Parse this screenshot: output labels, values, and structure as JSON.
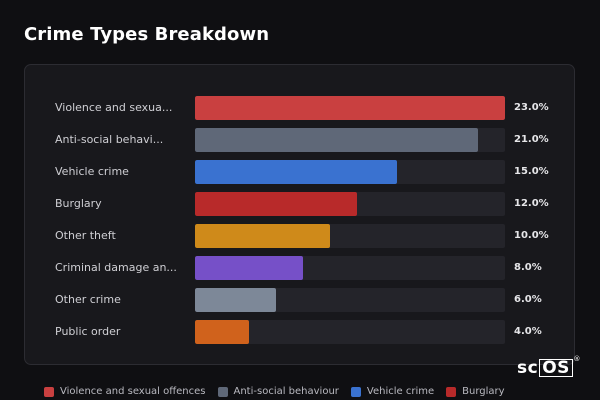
{
  "title": "Crime Types Breakdown",
  "brand": "scOS",
  "chart_data": {
    "type": "bar",
    "orientation": "horizontal",
    "categories": [
      "Violence and sexua...",
      "Anti-social behavi...",
      "Vehicle crime",
      "Burglary",
      "Other theft",
      "Criminal damage an...",
      "Other crime",
      "Public order"
    ],
    "values": [
      23.0,
      21.0,
      15.0,
      12.0,
      10.0,
      8.0,
      6.0,
      4.0
    ],
    "value_labels": [
      "23.0%",
      "21.0%",
      "15.0%",
      "12.0%",
      "10.0%",
      "8.0%",
      "6.0%",
      "4.0%"
    ],
    "colors": [
      "#c94040",
      "#5f6878",
      "#3a72d0",
      "#b82a2a",
      "#cf8a1a",
      "#7650c8",
      "#7d8898",
      "#d0621c"
    ],
    "xlim": [
      0,
      23.0
    ],
    "grid": false,
    "legend": {
      "placement": "bottom",
      "entries": [
        {
          "label": "Violence and sexual offences",
          "color": "#c94040"
        },
        {
          "label": "Anti-social behaviour",
          "color": "#5f6878"
        },
        {
          "label": "Vehicle crime",
          "color": "#3a72d0"
        },
        {
          "label": "Burglary",
          "color": "#b82a2a"
        }
      ]
    }
  }
}
